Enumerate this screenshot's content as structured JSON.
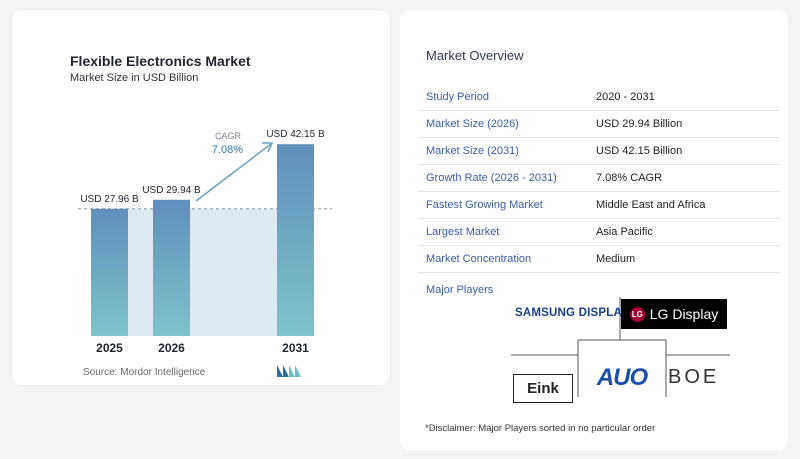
{
  "chart": {
    "title": "Flexible Electronics Market",
    "subtitle": "Market Size in USD Billion",
    "source": "Source:  Mordor Intelligence",
    "cagr_label": "CAGR",
    "cagr_value": "7.08%"
  },
  "chart_data": {
    "type": "bar",
    "title": "Flexible Electronics Market",
    "subtitle": "Market Size in USD Billion",
    "categories": [
      "2025",
      "2026",
      "2031"
    ],
    "values": [
      27.96,
      29.94,
      42.15
    ],
    "data_labels": [
      "USD 27.96 B",
      "USD 29.94 B",
      "USD 42.15 B"
    ],
    "annotation": "CAGR 7.08%",
    "xlabel": "",
    "ylabel": "",
    "grid": false,
    "colors": {
      "bar_top": "#5f8fbd",
      "bar_bottom": "#7ec3c8",
      "band": "#dde8f1",
      "arrow": "#6fa3c9"
    }
  },
  "overview": {
    "heading": "Market Overview",
    "rows": [
      {
        "key": "Study Period",
        "value": "2020 - 2031"
      },
      {
        "key": "Market Size (2026)",
        "value": "USD 29.94 Billion"
      },
      {
        "key": "Market Size (2031)",
        "value": "USD 42.15 Billion"
      },
      {
        "key": "Growth Rate (2026 - 2031)",
        "value": "7.08% CAGR"
      },
      {
        "key": "Fastest Growing Market",
        "value": "Middle East and Africa"
      },
      {
        "key": "Largest Market",
        "value": "Asia Pacific"
      },
      {
        "key": "Market Concentration",
        "value": "Medium"
      }
    ],
    "players_heading": "Major Players",
    "players": {
      "samsung": "SAMSUNG DISPLAY",
      "lg_mark": "LG",
      "lg_text": "LG Display",
      "eink": "Eink",
      "auo": "AUO",
      "boe": "BOE"
    },
    "disclaimer": "*Disclaimer: Major Players sorted in no particular order"
  }
}
